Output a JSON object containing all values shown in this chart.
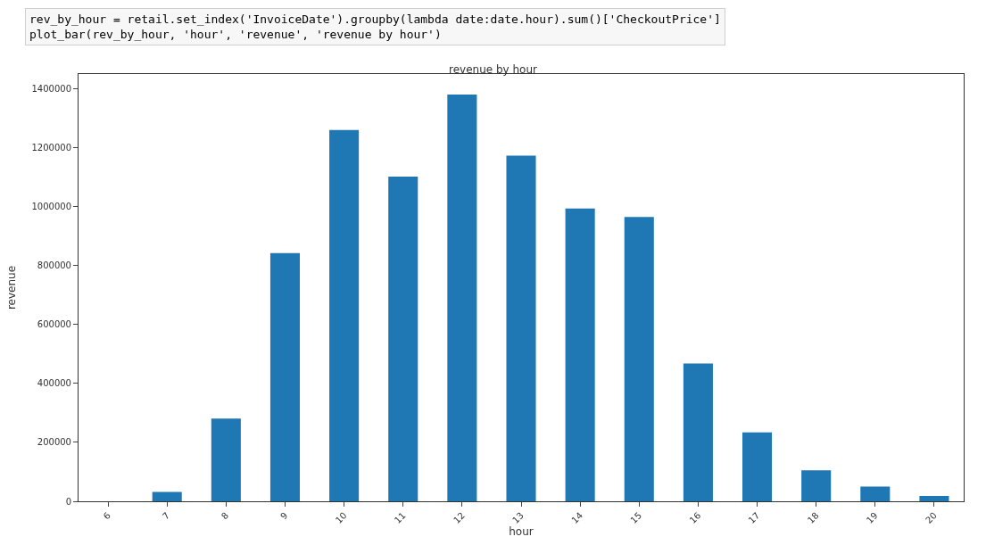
{
  "chart_data": {
    "type": "bar",
    "title": "revenue by hour",
    "xlabel": "hour",
    "ylabel": "revenue",
    "annotations": [
      "rev_by_hour = retail.set_index('InvoiceDate').groupby(lambda date:date.hour).sum()['CheckoutPrice']\nplot_bar(rev_by_hour, 'hour', 'revenue', 'revenue by hour')"
    ],
    "categories": [
      "6",
      "7",
      "8",
      "9",
      "10",
      "11",
      "12",
      "13",
      "14",
      "15",
      "16",
      "17",
      "18",
      "19",
      "20"
    ],
    "values": [
      0,
      32000,
      281000,
      842000,
      1260000,
      1102000,
      1380000,
      1173000,
      994000,
      965000,
      468000,
      234000,
      105000,
      50000,
      18000
    ],
    "color": "#1f77b4",
    "ylim": [
      0,
      1450000
    ],
    "yticks": [
      0,
      200000,
      400000,
      600000,
      800000,
      1000000,
      1200000,
      1400000
    ],
    "legend": false
  }
}
